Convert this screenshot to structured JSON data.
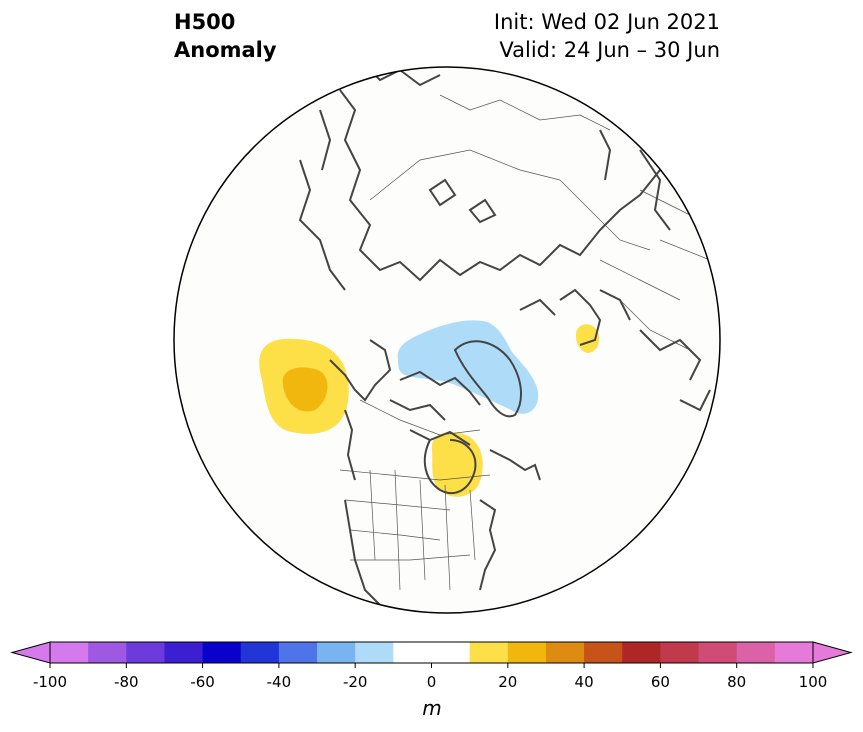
{
  "header": {
    "title_line1": "H500",
    "title_line2": "Anomaly",
    "init_text": "Init: Wed 02 Jun 2021",
    "valid_text": "Valid: 24 Jun – 30 Jun"
  },
  "map": {
    "projection": "north-polar-stereographic",
    "background": "#fdfdfb",
    "coastline_color": "#444444",
    "anomalies": [
      {
        "region": "Gulf of Alaska",
        "sign": "positive",
        "level": "10-30 m",
        "colors": [
          "#fde047",
          "#f1b70f"
        ]
      },
      {
        "region": "Great Lakes / Hudson Bay south",
        "sign": "positive",
        "level": "10-20 m",
        "colors": [
          "#fde047"
        ]
      },
      {
        "region": "Northern Europe / Baltic",
        "sign": "positive",
        "level": "10-20 m",
        "colors": [
          "#fde047"
        ]
      },
      {
        "region": "Greenland / Baffin Bay",
        "sign": "negative",
        "level": "-10 to -20 m",
        "colors": [
          "#aedcf8"
        ]
      }
    ]
  },
  "colorbar": {
    "unit": "m",
    "ticks": [
      "-100",
      "-80",
      "-60",
      "-40",
      "-20",
      "0",
      "20",
      "40",
      "60",
      "80",
      "100"
    ],
    "bounds": [
      -100,
      100
    ],
    "step": 10,
    "colors": [
      "#d57aec",
      "#9e58e2",
      "#6d3bdb",
      "#3b1fd0",
      "#0a00cc",
      "#2236d8",
      "#4f73e8",
      "#7ab4f0",
      "#aedcf8",
      "#ffffff",
      "#ffffff",
      "#fde047",
      "#f1b70f",
      "#de8b14",
      "#c6531a",
      "#ad2727",
      "#c13a4b",
      "#d04c77",
      "#dc62a8",
      "#e57ad8"
    ],
    "extend_low_color": "#d57aec",
    "extend_high_color": "#e57ad8"
  }
}
